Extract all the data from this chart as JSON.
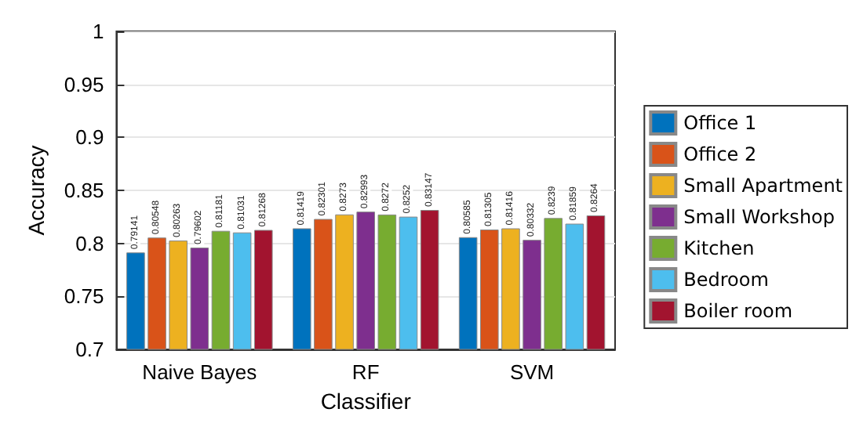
{
  "chart_data": {
    "type": "bar",
    "xlabel": "Classifier",
    "ylabel": "Accuracy",
    "categories": [
      "Naive Bayes",
      "RF",
      "SVM"
    ],
    "series": [
      {
        "name": "Office 1",
        "color": "#0072bd",
        "values": [
          0.79141,
          0.81419,
          0.80585
        ]
      },
      {
        "name": "Office 2",
        "color": "#d95319",
        "values": [
          0.80548,
          0.82301,
          0.81305
        ]
      },
      {
        "name": "Small Apartment",
        "color": "#edb120",
        "values": [
          0.80263,
          0.8273,
          0.81416
        ]
      },
      {
        "name": "Small Workshop",
        "color": "#7e2f8e",
        "values": [
          0.79602,
          0.82993,
          0.80332
        ]
      },
      {
        "name": "Kitchen",
        "color": "#77ac30",
        "values": [
          0.81181,
          0.8272,
          0.8239
        ]
      },
      {
        "name": "Bedroom",
        "color": "#4dbeee",
        "values": [
          0.81031,
          0.8252,
          0.81859
        ]
      },
      {
        "name": "Boiler room",
        "color": "#a2142f",
        "values": [
          0.81268,
          0.83147,
          0.8264
        ]
      }
    ],
    "data_labels": true,
    "ylim": [
      0.7,
      1
    ],
    "yticks": [
      0.7,
      0.75,
      0.8,
      0.85,
      0.9,
      0.95,
      1
    ],
    "grid": "y",
    "legend": "right"
  }
}
